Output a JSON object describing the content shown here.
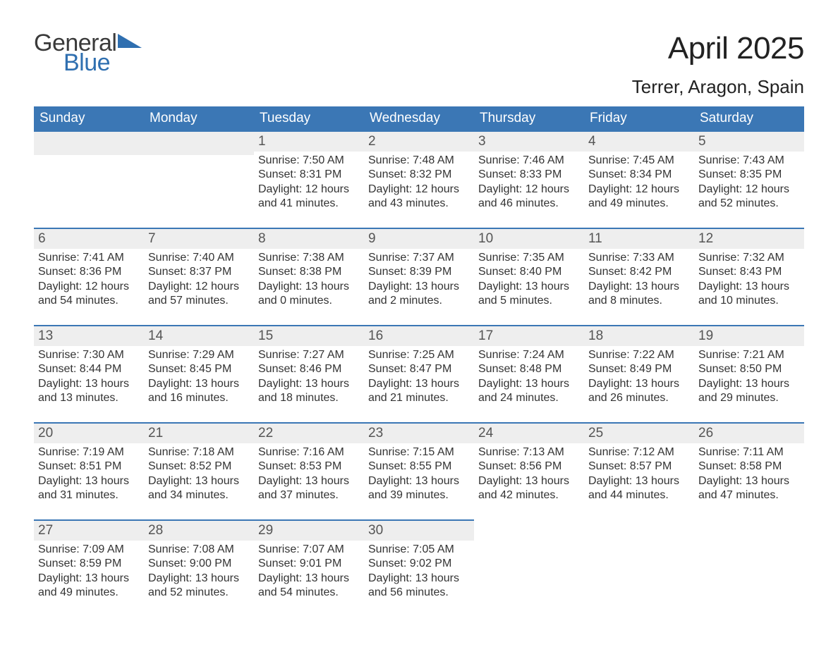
{
  "logo": {
    "text_general": "General",
    "text_blue": "Blue",
    "triangle_color": "#2f6fb0"
  },
  "title": "April 2025",
  "location": "Terrer, Aragon, Spain",
  "colors": {
    "header_bg": "#3b77b5",
    "header_text": "#ffffff",
    "daynum_bg": "#eeeeee",
    "daynum_border": "#3b77b5",
    "text": "#333333",
    "page_bg": "#ffffff"
  },
  "weekdays": [
    "Sunday",
    "Monday",
    "Tuesday",
    "Wednesday",
    "Thursday",
    "Friday",
    "Saturday"
  ],
  "weeks": [
    [
      {
        "blank": true
      },
      {
        "blank": true
      },
      {
        "num": "1",
        "sunrise": "7:50 AM",
        "sunset": "8:31 PM",
        "daylight_h": "12",
        "daylight_m": "41"
      },
      {
        "num": "2",
        "sunrise": "7:48 AM",
        "sunset": "8:32 PM",
        "daylight_h": "12",
        "daylight_m": "43"
      },
      {
        "num": "3",
        "sunrise": "7:46 AM",
        "sunset": "8:33 PM",
        "daylight_h": "12",
        "daylight_m": "46"
      },
      {
        "num": "4",
        "sunrise": "7:45 AM",
        "sunset": "8:34 PM",
        "daylight_h": "12",
        "daylight_m": "49"
      },
      {
        "num": "5",
        "sunrise": "7:43 AM",
        "sunset": "8:35 PM",
        "daylight_h": "12",
        "daylight_m": "52"
      }
    ],
    [
      {
        "num": "6",
        "sunrise": "7:41 AM",
        "sunset": "8:36 PM",
        "daylight_h": "12",
        "daylight_m": "54"
      },
      {
        "num": "7",
        "sunrise": "7:40 AM",
        "sunset": "8:37 PM",
        "daylight_h": "12",
        "daylight_m": "57"
      },
      {
        "num": "8",
        "sunrise": "7:38 AM",
        "sunset": "8:38 PM",
        "daylight_h": "13",
        "daylight_m": "0"
      },
      {
        "num": "9",
        "sunrise": "7:37 AM",
        "sunset": "8:39 PM",
        "daylight_h": "13",
        "daylight_m": "2"
      },
      {
        "num": "10",
        "sunrise": "7:35 AM",
        "sunset": "8:40 PM",
        "daylight_h": "13",
        "daylight_m": "5"
      },
      {
        "num": "11",
        "sunrise": "7:33 AM",
        "sunset": "8:42 PM",
        "daylight_h": "13",
        "daylight_m": "8"
      },
      {
        "num": "12",
        "sunrise": "7:32 AM",
        "sunset": "8:43 PM",
        "daylight_h": "13",
        "daylight_m": "10"
      }
    ],
    [
      {
        "num": "13",
        "sunrise": "7:30 AM",
        "sunset": "8:44 PM",
        "daylight_h": "13",
        "daylight_m": "13"
      },
      {
        "num": "14",
        "sunrise": "7:29 AM",
        "sunset": "8:45 PM",
        "daylight_h": "13",
        "daylight_m": "16"
      },
      {
        "num": "15",
        "sunrise": "7:27 AM",
        "sunset": "8:46 PM",
        "daylight_h": "13",
        "daylight_m": "18"
      },
      {
        "num": "16",
        "sunrise": "7:25 AM",
        "sunset": "8:47 PM",
        "daylight_h": "13",
        "daylight_m": "21"
      },
      {
        "num": "17",
        "sunrise": "7:24 AM",
        "sunset": "8:48 PM",
        "daylight_h": "13",
        "daylight_m": "24"
      },
      {
        "num": "18",
        "sunrise": "7:22 AM",
        "sunset": "8:49 PM",
        "daylight_h": "13",
        "daylight_m": "26"
      },
      {
        "num": "19",
        "sunrise": "7:21 AM",
        "sunset": "8:50 PM",
        "daylight_h": "13",
        "daylight_m": "29"
      }
    ],
    [
      {
        "num": "20",
        "sunrise": "7:19 AM",
        "sunset": "8:51 PM",
        "daylight_h": "13",
        "daylight_m": "31"
      },
      {
        "num": "21",
        "sunrise": "7:18 AM",
        "sunset": "8:52 PM",
        "daylight_h": "13",
        "daylight_m": "34"
      },
      {
        "num": "22",
        "sunrise": "7:16 AM",
        "sunset": "8:53 PM",
        "daylight_h": "13",
        "daylight_m": "37"
      },
      {
        "num": "23",
        "sunrise": "7:15 AM",
        "sunset": "8:55 PM",
        "daylight_h": "13",
        "daylight_m": "39"
      },
      {
        "num": "24",
        "sunrise": "7:13 AM",
        "sunset": "8:56 PM",
        "daylight_h": "13",
        "daylight_m": "42"
      },
      {
        "num": "25",
        "sunrise": "7:12 AM",
        "sunset": "8:57 PM",
        "daylight_h": "13",
        "daylight_m": "44"
      },
      {
        "num": "26",
        "sunrise": "7:11 AM",
        "sunset": "8:58 PM",
        "daylight_h": "13",
        "daylight_m": "47"
      }
    ],
    [
      {
        "num": "27",
        "sunrise": "7:09 AM",
        "sunset": "8:59 PM",
        "daylight_h": "13",
        "daylight_m": "49"
      },
      {
        "num": "28",
        "sunrise": "7:08 AM",
        "sunset": "9:00 PM",
        "daylight_h": "13",
        "daylight_m": "52"
      },
      {
        "num": "29",
        "sunrise": "7:07 AM",
        "sunset": "9:01 PM",
        "daylight_h": "13",
        "daylight_m": "54"
      },
      {
        "num": "30",
        "sunrise": "7:05 AM",
        "sunset": "9:02 PM",
        "daylight_h": "13",
        "daylight_m": "56"
      },
      {
        "blank": true
      },
      {
        "blank": true
      },
      {
        "blank": true
      }
    ]
  ],
  "labels": {
    "sunrise": "Sunrise:",
    "sunset": "Sunset:",
    "daylight_prefix": "Daylight:",
    "hours_word": "hours",
    "and_word": "and",
    "minutes_word": "minutes."
  }
}
